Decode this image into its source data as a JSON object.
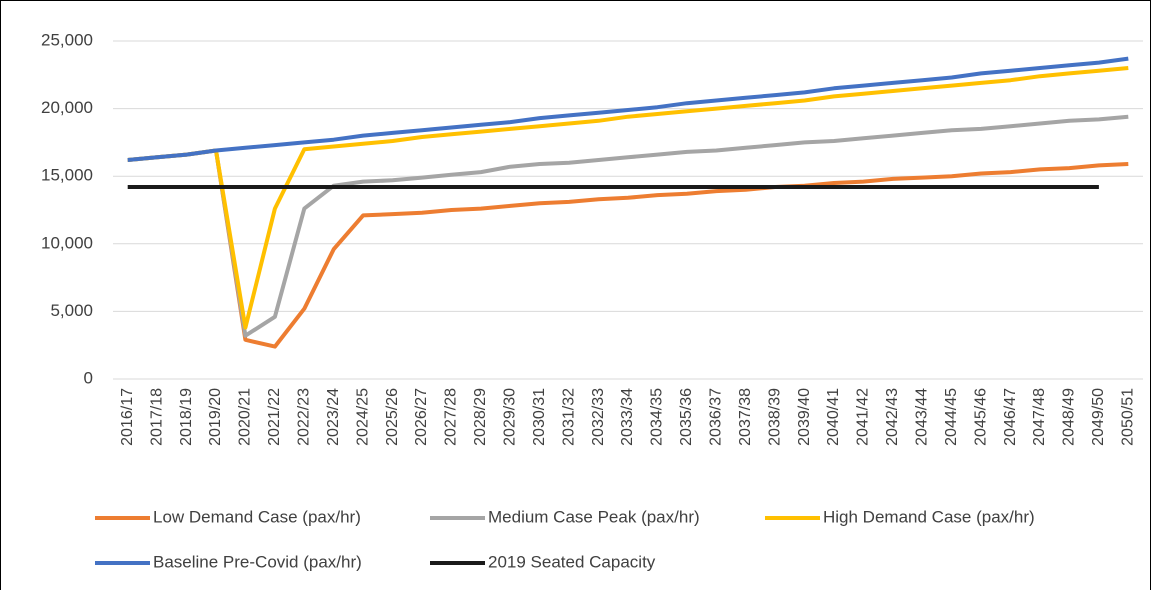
{
  "chart_data": {
    "type": "line",
    "categories": [
      "2016/17",
      "2017/18",
      "2018/19",
      "2019/20",
      "2020/21",
      "2021/22",
      "2022/23",
      "2023/24",
      "2024/25",
      "2025/26",
      "2026/27",
      "2027/28",
      "2028/29",
      "2029/30",
      "2030/31",
      "2031/32",
      "2032/33",
      "2033/34",
      "2034/35",
      "2035/36",
      "2036/37",
      "2037/38",
      "2038/39",
      "2039/40",
      "2040/41",
      "2041/42",
      "2042/43",
      "2043/44",
      "2044/45",
      "2045/46",
      "2046/47",
      "2047/48",
      "2048/49",
      "2049/50",
      "2050/51"
    ],
    "series": [
      {
        "name": "Low Demand Case (pax/hr)",
        "color": "#ed7d31",
        "values": [
          16200,
          16400,
          16600,
          16900,
          2900,
          2400,
          5200,
          9600,
          12100,
          12200,
          12300,
          12500,
          12600,
          12800,
          13000,
          13100,
          13300,
          13400,
          13600,
          13700,
          13900,
          14000,
          14200,
          14300,
          14500,
          14600,
          14800,
          14900,
          15000,
          15200,
          15300,
          15500,
          15600,
          15800,
          15900
        ]
      },
      {
        "name": "Medium Case Peak (pax/hr)",
        "color": "#a5a5a5",
        "values": [
          16200,
          16400,
          16600,
          16900,
          3200,
          4600,
          12600,
          14300,
          14600,
          14700,
          14900,
          15100,
          15300,
          15700,
          15900,
          16000,
          16200,
          16400,
          16600,
          16800,
          16900,
          17100,
          17300,
          17500,
          17600,
          17800,
          18000,
          18200,
          18400,
          18500,
          18700,
          18900,
          19100,
          19200,
          19400
        ]
      },
      {
        "name": "High Demand Case (pax/hr)",
        "color": "#ffc000",
        "values": [
          16200,
          16400,
          16600,
          16900,
          3800,
          12600,
          17000,
          17200,
          17400,
          17600,
          17900,
          18100,
          18300,
          18500,
          18700,
          18900,
          19100,
          19400,
          19600,
          19800,
          20000,
          20200,
          20400,
          20600,
          20900,
          21100,
          21300,
          21500,
          21700,
          21900,
          22100,
          22400,
          22600,
          22800,
          23000
        ]
      },
      {
        "name": "Baseline Pre-Covid (pax/hr)",
        "color": "#4472c4",
        "values": [
          16200,
          16400,
          16600,
          16900,
          17100,
          17300,
          17500,
          17700,
          18000,
          18200,
          18400,
          18600,
          18800,
          19000,
          19300,
          19500,
          19700,
          19900,
          20100,
          20400,
          20600,
          20800,
          21000,
          21200,
          21500,
          21700,
          21900,
          22100,
          22300,
          22600,
          22800,
          23000,
          23200,
          23400,
          23700
        ]
      },
      {
        "name": "2019 Seated Capacity",
        "color": "#1a1a1a",
        "values": [
          14200,
          14200,
          14200,
          14200,
          14200,
          14200,
          14200,
          14200,
          14200,
          14200,
          14200,
          14200,
          14200,
          14200,
          14200,
          14200,
          14200,
          14200,
          14200,
          14200,
          14200,
          14200,
          14200,
          14200,
          14200,
          14200,
          14200,
          14200,
          14200,
          14200,
          14200,
          14200,
          14200,
          14200,
          null
        ]
      }
    ],
    "ylim": [
      0,
      25000
    ],
    "yticks": [
      0,
      {
        "value": 5000,
        "label": "5,000"
      },
      {
        "value": 10000,
        "label": "10,000"
      },
      {
        "value": 15000,
        "label": "15,000"
      },
      {
        "value": 20000,
        "label": "20,000"
      },
      {
        "value": 25000,
        "label": "25,000"
      }
    ],
    "grid": true
  }
}
